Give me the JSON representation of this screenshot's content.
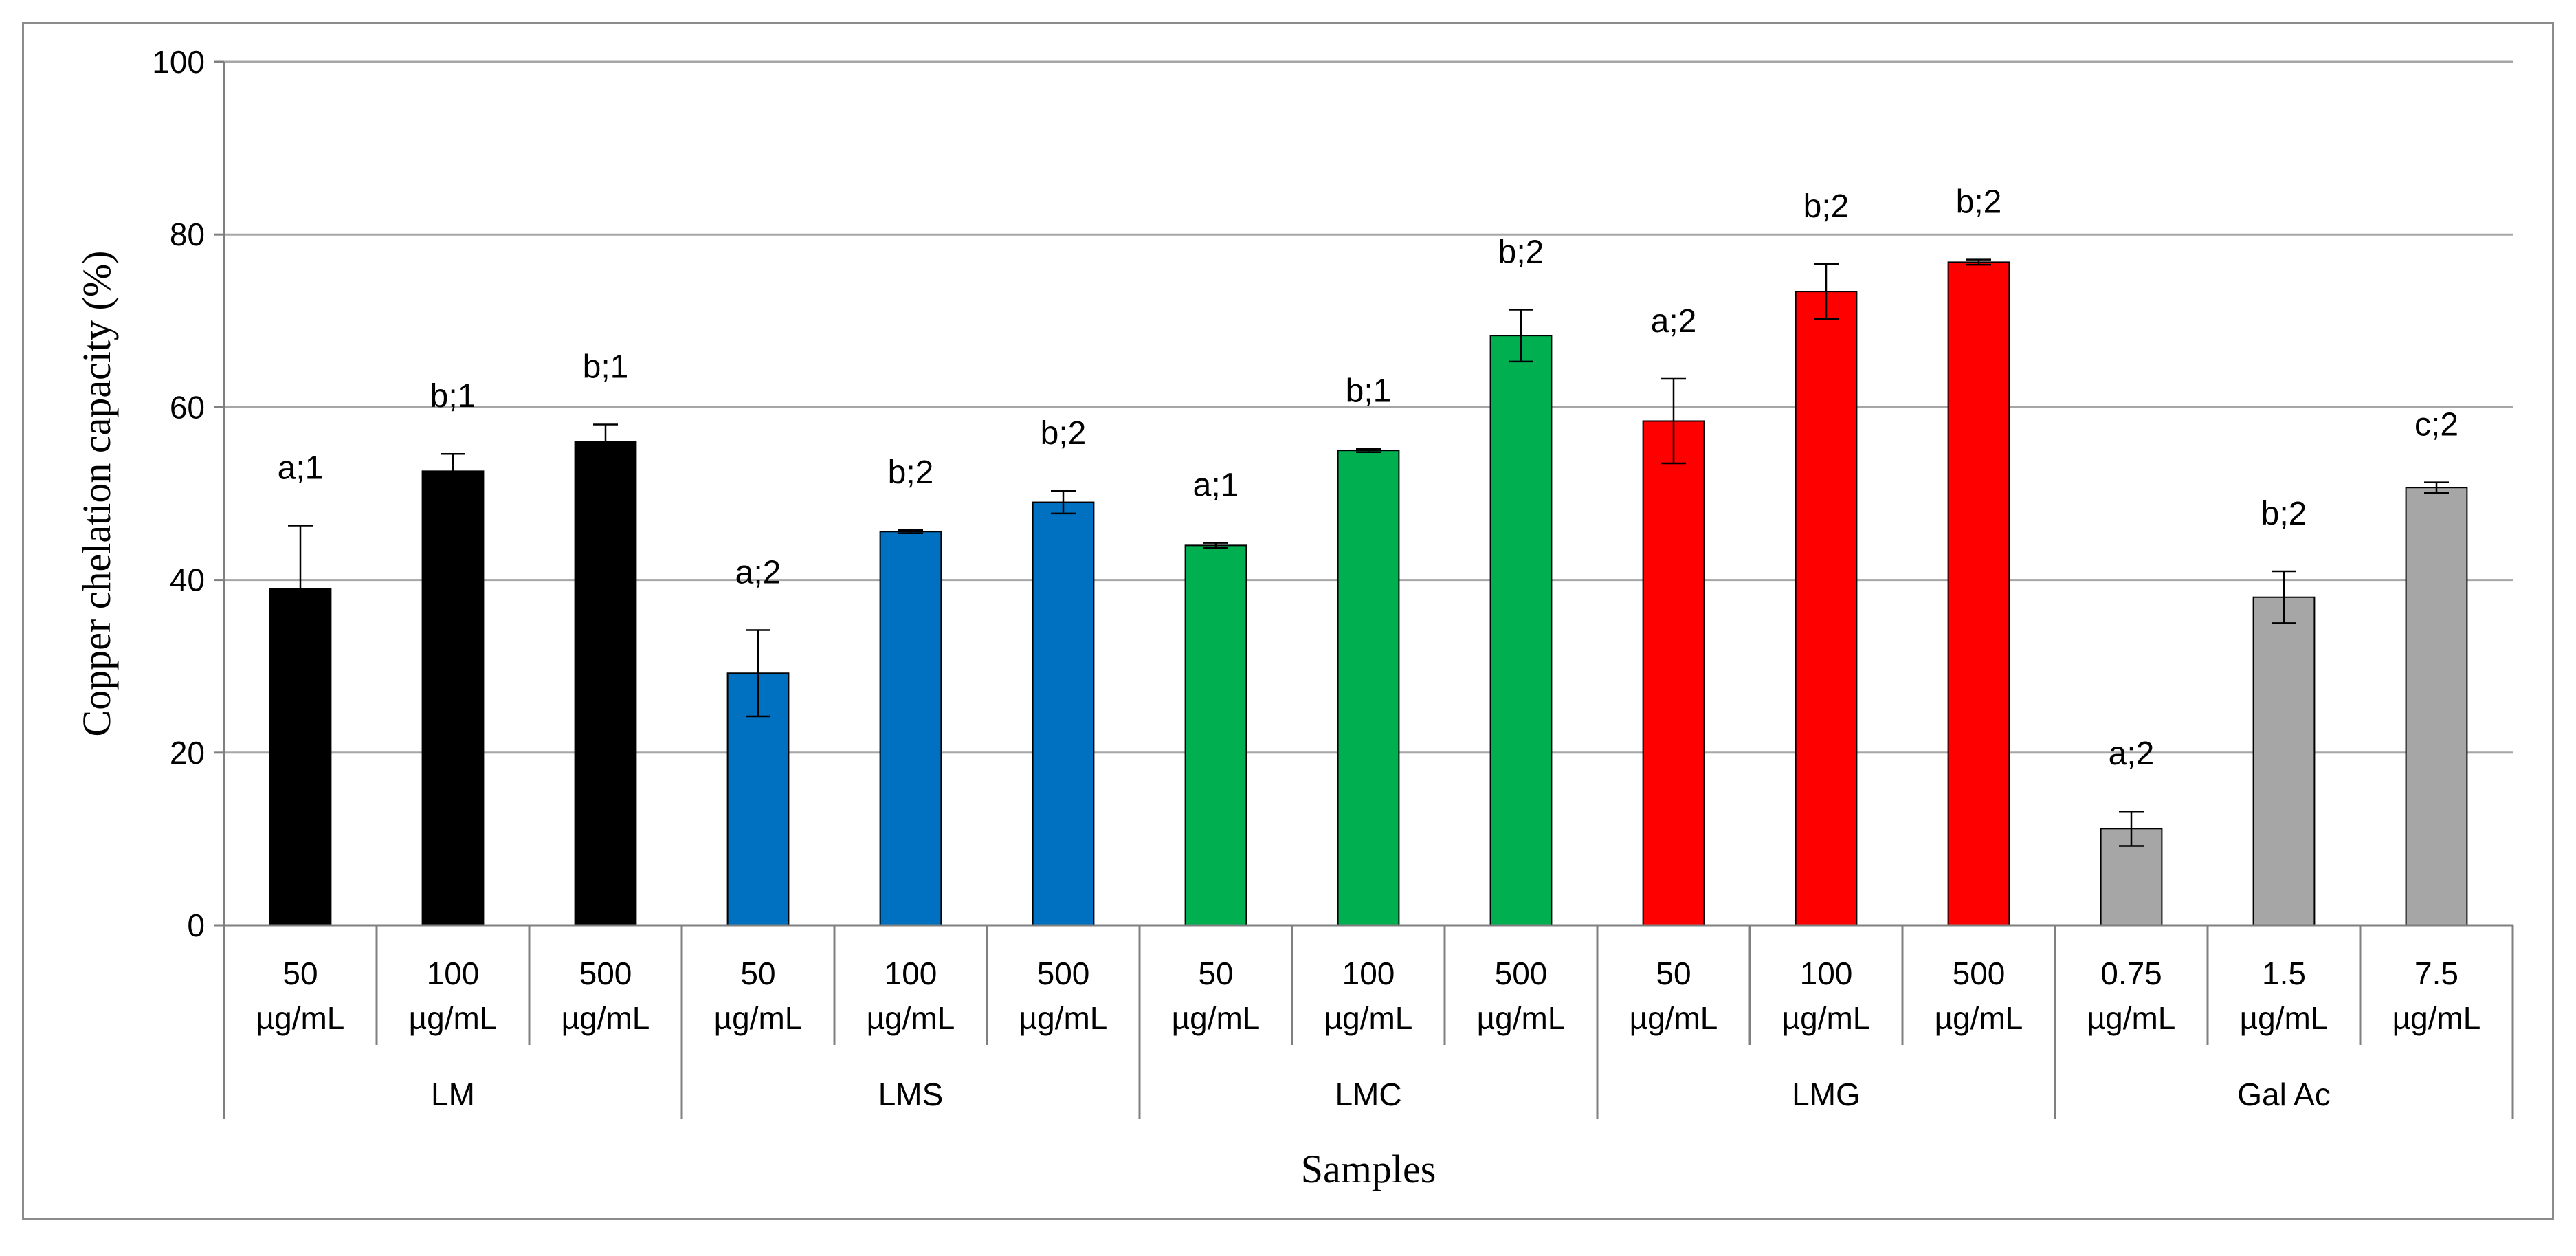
{
  "chart_data": {
    "type": "bar",
    "title": "",
    "xlabel": "Samples",
    "ylabel": "Copper chelation capacity (%)",
    "ylim": [
      0,
      100
    ],
    "yticks": [
      "0",
      "20",
      "40",
      "60",
      "80",
      "100"
    ],
    "ytick_values": [
      0,
      20,
      40,
      60,
      80,
      100
    ],
    "grid": true,
    "groups": [
      {
        "name": "LM",
        "color": "#000000",
        "bars": [
          {
            "line1": "50",
            "line2": "µg/mL",
            "value": 39,
            "error": 7.3,
            "label": "a;1"
          },
          {
            "line1": "100",
            "line2": "µg/mL",
            "value": 52.6,
            "error": 2.0,
            "label": "b;1"
          },
          {
            "line1": "500",
            "line2": "µg/mL",
            "value": 56,
            "error": 2.0,
            "label": "b;1"
          }
        ]
      },
      {
        "name": "LMS",
        "color": "#0070c0",
        "bars": [
          {
            "line1": "50",
            "line2": "µg/mL",
            "value": 29.2,
            "error": 5.0,
            "label": "a;2"
          },
          {
            "line1": "100",
            "line2": "µg/mL",
            "value": 45.6,
            "error": 0.2,
            "label": "b;2"
          },
          {
            "line1": "500",
            "line2": "µg/mL",
            "value": 49,
            "error": 1.3,
            "label": "b;2"
          }
        ]
      },
      {
        "name": "LMC",
        "color": "#00b050",
        "bars": [
          {
            "line1": "50",
            "line2": "µg/mL",
            "value": 44,
            "error": 0.3,
            "label": "a;1"
          },
          {
            "line1": "100",
            "line2": "µg/mL",
            "value": 55,
            "error": 0.2,
            "label": "b;1"
          },
          {
            "line1": "500",
            "line2": "µg/mL",
            "value": 68.3,
            "error": 3.0,
            "label": "b;2"
          }
        ]
      },
      {
        "name": "LMG",
        "color": "#ff0000",
        "bars": [
          {
            "line1": "50",
            "line2": "µg/mL",
            "value": 58.4,
            "error": 4.9,
            "label": "a;2"
          },
          {
            "line1": "100",
            "line2": "µg/mL",
            "value": 73.4,
            "error": 3.2,
            "label": "b;2"
          },
          {
            "line1": "500",
            "line2": "µg/mL",
            "value": 76.8,
            "error": 0.3,
            "label": "b;2"
          }
        ]
      },
      {
        "name": "Gal Ac",
        "color": "#a6a6a6",
        "bars": [
          {
            "line1": "0.75",
            "line2": "µg/mL",
            "value": 11.2,
            "error": 2.0,
            "label": "a;2"
          },
          {
            "line1": "1.5",
            "line2": "µg/mL",
            "value": 38,
            "error": 3.0,
            "label": "b;2"
          },
          {
            "line1": "7.5",
            "line2": "µg/mL",
            "value": 50.7,
            "error": 0.6,
            "label": "c;2"
          }
        ]
      }
    ]
  }
}
